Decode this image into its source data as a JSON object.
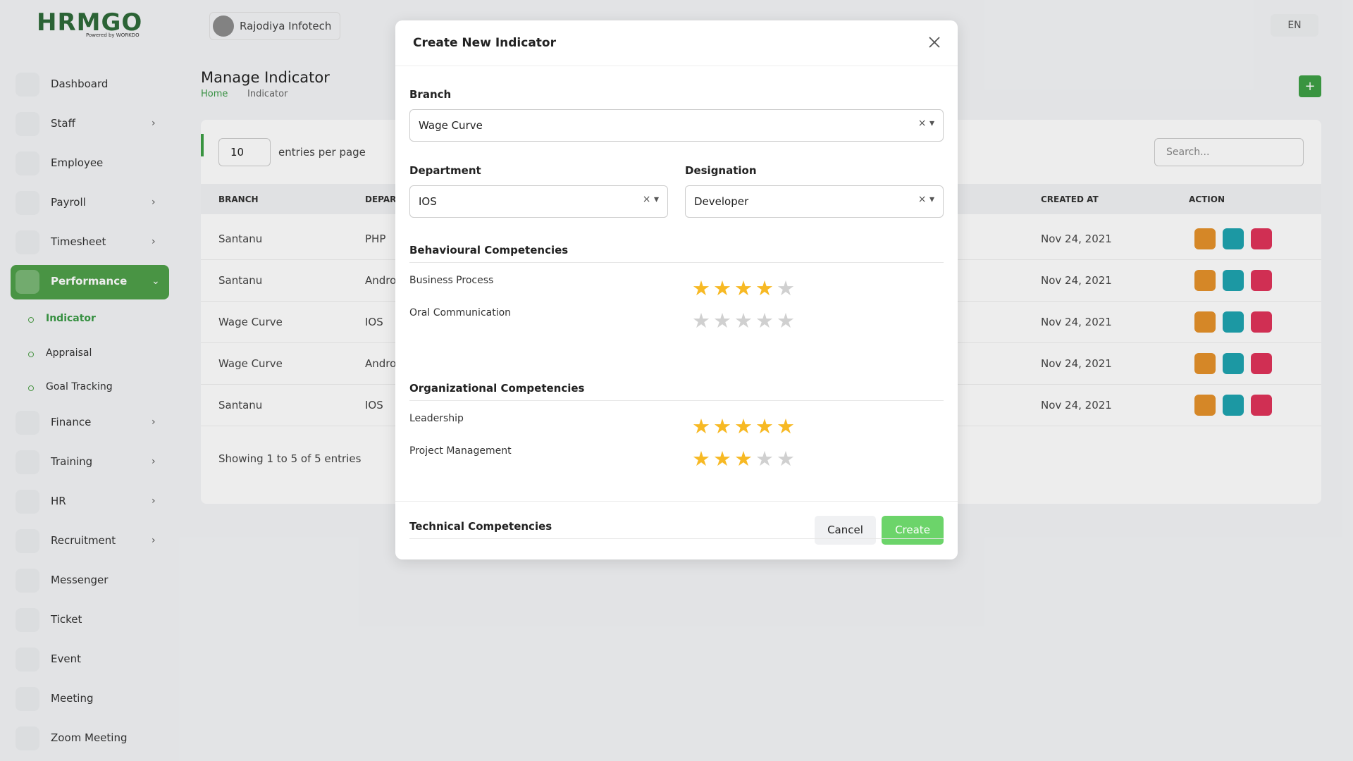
{
  "header": {
    "logo": "HRMGO",
    "logo_tagline": "Powered by WORKDO",
    "company": "Rajodiya Infotech",
    "language": "EN"
  },
  "sidebar": {
    "items": [
      {
        "label": "Dashboard",
        "expandable": false
      },
      {
        "label": "Staff",
        "expandable": true
      },
      {
        "label": "Employee",
        "expandable": false
      },
      {
        "label": "Payroll",
        "expandable": true
      },
      {
        "label": "Timesheet",
        "expandable": true
      },
      {
        "label": "Performance",
        "expandable": true,
        "active": true,
        "submenu": [
          "Indicator",
          "Appraisal",
          "Goal Tracking"
        ]
      },
      {
        "label": "Finance",
        "expandable": true
      },
      {
        "label": "Training",
        "expandable": true
      },
      {
        "label": "HR",
        "expandable": true
      },
      {
        "label": "Recruitment",
        "expandable": true
      },
      {
        "label": "Messenger",
        "expandable": false
      },
      {
        "label": "Ticket",
        "expandable": false
      },
      {
        "label": "Event",
        "expandable": false
      },
      {
        "label": "Meeting",
        "expandable": false
      },
      {
        "label": "Zoom Meeting",
        "expandable": false
      }
    ]
  },
  "page": {
    "title": "Manage Indicator",
    "breadcrumb": [
      "Home",
      "Indicator"
    ]
  },
  "table": {
    "entries_per_page": 10,
    "entries_label": "entries per page",
    "search_placeholder": "Search...",
    "columns": [
      "BRANCH",
      "DEPARTMENT",
      "CREATED AT",
      "ACTION"
    ],
    "rows": [
      [
        "Santanu",
        "PHP",
        "Nov 24, 2021"
      ],
      [
        "Santanu",
        "Android",
        "Nov 24, 2021"
      ],
      [
        "Wage Curve",
        "IOS",
        "Nov 24, 2021"
      ],
      [
        "Wage Curve",
        "Android",
        "Nov 24, 2021"
      ],
      [
        "Santanu",
        "IOS",
        "Nov 24, 2021"
      ]
    ],
    "footer": "Showing 1 to 5 of 5 entries"
  },
  "modal": {
    "title": "Create New Indicator",
    "branch_label": "Branch",
    "branch_value": "Wage Curve",
    "department_label": "Department",
    "department_value": "IOS",
    "designation_label": "Designation",
    "designation_value": "Developer",
    "sections": [
      {
        "title": "Behavioural Competencies",
        "items": [
          {
            "label": "Business Process",
            "rating": 4
          },
          {
            "label": "Oral Communication",
            "rating": 0
          }
        ]
      },
      {
        "title": "Organizational Competencies",
        "items": [
          {
            "label": "Leadership",
            "rating": 5
          },
          {
            "label": "Project Management",
            "rating": 3
          }
        ]
      },
      {
        "title": "Technical Competencies",
        "items": []
      }
    ],
    "cancel": "Cancel",
    "create": "Create"
  }
}
